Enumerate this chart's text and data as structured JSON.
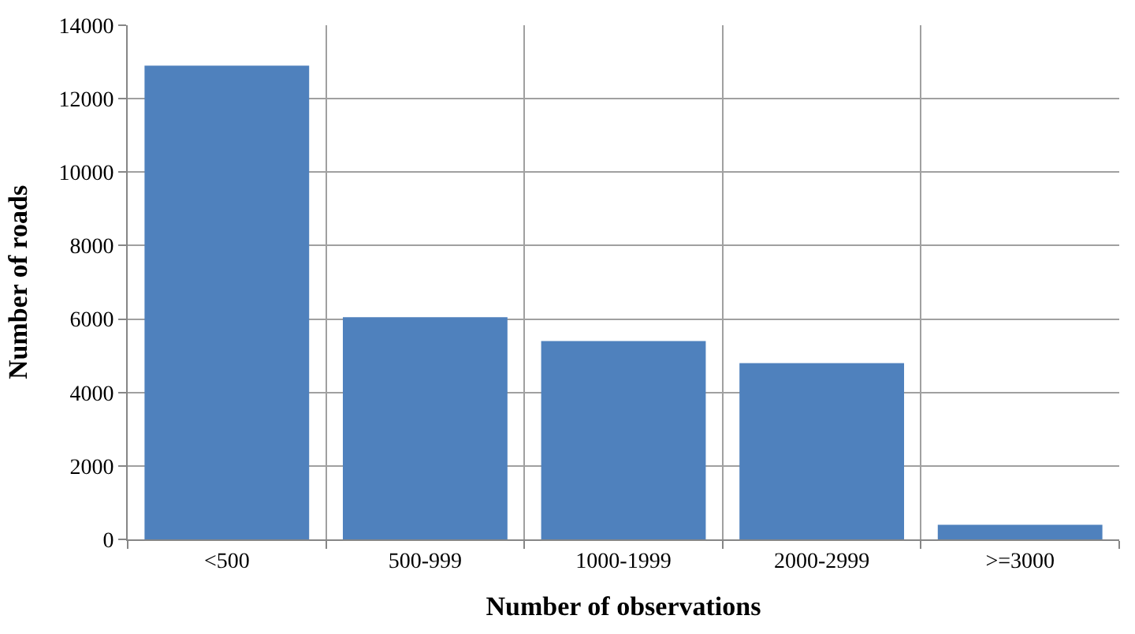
{
  "chart_data": {
    "type": "bar",
    "xlabel": "Number of observations",
    "ylabel": "Number of roads",
    "categories": [
      "<500",
      "500-999",
      "1000-1999",
      "2000-2999",
      ">=3000"
    ],
    "values": [
      12900,
      6050,
      5400,
      4800,
      400
    ],
    "color": "#4f81bd",
    "ylim": [
      0,
      14000
    ],
    "yticks": [
      0,
      2000,
      4000,
      6000,
      8000,
      10000,
      12000,
      14000
    ],
    "grid": true
  }
}
